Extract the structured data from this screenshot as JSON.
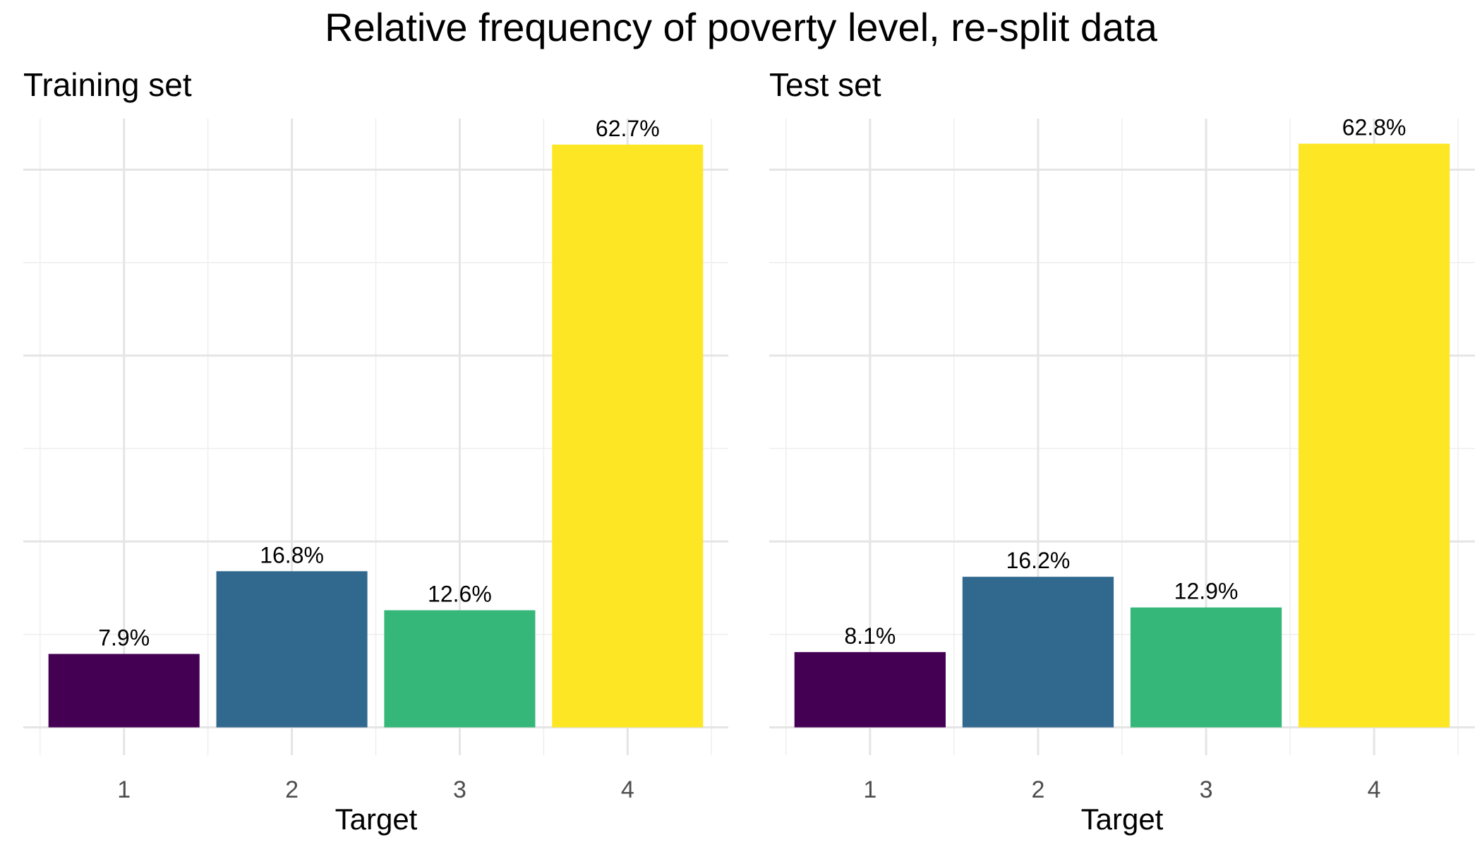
{
  "title": "Relative frequency of poverty level, re-split data",
  "colors": {
    "palette": [
      "#440154",
      "#31688e",
      "#35b779",
      "#fde725"
    ],
    "grid_major": "#e5e5e5",
    "grid_minor": "#efefef",
    "background": "#ffffff"
  },
  "chart_data": [
    {
      "type": "bar",
      "title": "Training set",
      "xlabel": "Target",
      "ylabel": "",
      "categories": [
        "1",
        "2",
        "3",
        "4"
      ],
      "values": [
        7.9,
        16.8,
        12.6,
        62.7
      ],
      "labels": [
        "7.9%",
        "16.8%",
        "12.6%",
        "62.7%"
      ],
      "ylim": [
        -3,
        65.5
      ],
      "y_ticks_shown": false,
      "grid": true,
      "legend": "none"
    },
    {
      "type": "bar",
      "title": "Test set",
      "xlabel": "Target",
      "ylabel": "",
      "categories": [
        "1",
        "2",
        "3",
        "4"
      ],
      "values": [
        8.1,
        16.2,
        12.9,
        62.8
      ],
      "labels": [
        "8.1%",
        "16.2%",
        "12.9%",
        "62.8%"
      ],
      "ylim": [
        -3,
        65.5
      ],
      "y_ticks_shown": false,
      "grid": true,
      "legend": "none"
    }
  ]
}
